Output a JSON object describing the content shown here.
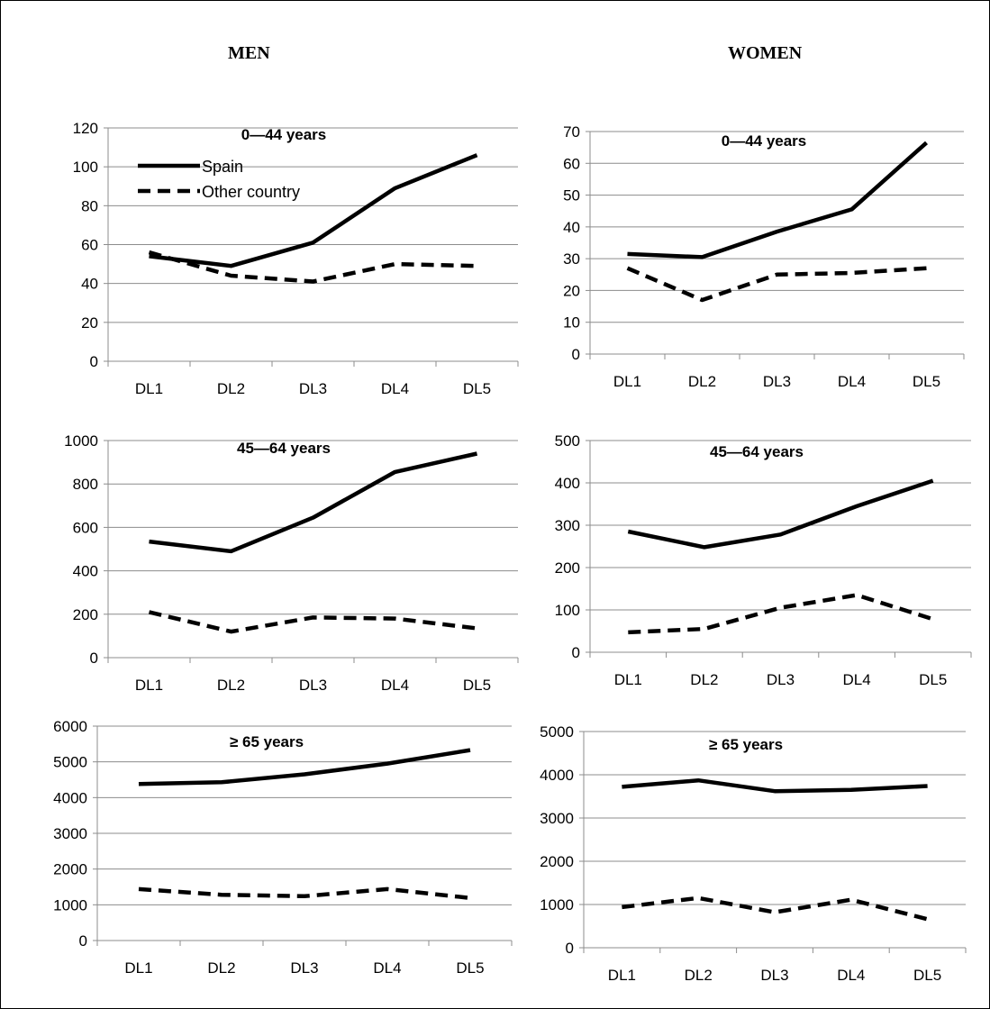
{
  "headers": {
    "men": "MEN",
    "women": "WOMEN"
  },
  "legend": {
    "spain": "Spain",
    "other": "Other country"
  },
  "chart_data": [
    {
      "type": "line",
      "group": "MEN",
      "title": "0—44 years",
      "categories": [
        "DL1",
        "DL2",
        "DL3",
        "DL4",
        "DL5"
      ],
      "ylim": [
        0,
        120
      ],
      "yticks": [
        0,
        20,
        40,
        60,
        80,
        100,
        120
      ],
      "series": [
        {
          "name": "Spain",
          "values": [
            54,
            49,
            61,
            89,
            106
          ]
        },
        {
          "name": "Other country",
          "values": [
            56,
            44,
            41,
            50,
            49
          ]
        }
      ]
    },
    {
      "type": "line",
      "group": "WOMEN",
      "title": "0—44 years",
      "categories": [
        "DL1",
        "DL2",
        "DL3",
        "DL4",
        "DL5"
      ],
      "ylim": [
        0,
        70
      ],
      "yticks": [
        0,
        10,
        20,
        30,
        40,
        50,
        60,
        70
      ],
      "series": [
        {
          "name": "Spain",
          "values": [
            31.5,
            30.5,
            38.5,
            45.5,
            66.5
          ]
        },
        {
          "name": "Other country",
          "values": [
            27,
            17,
            25,
            25.5,
            27
          ]
        }
      ]
    },
    {
      "type": "line",
      "group": "MEN",
      "title": "45—64 years",
      "categories": [
        "DL1",
        "DL2",
        "DL3",
        "DL4",
        "DL5"
      ],
      "ylim": [
        0,
        1000
      ],
      "yticks": [
        0,
        200,
        400,
        600,
        800,
        1000
      ],
      "series": [
        {
          "name": "Spain",
          "values": [
            535,
            490,
            645,
            855,
            940
          ]
        },
        {
          "name": "Other country",
          "values": [
            210,
            120,
            185,
            180,
            135
          ]
        }
      ]
    },
    {
      "type": "line",
      "group": "WOMEN",
      "title": "45—64 years",
      "categories": [
        "DL1",
        "DL2",
        "DL3",
        "DL4",
        "DL5"
      ],
      "ylim": [
        0,
        500
      ],
      "yticks": [
        0,
        100,
        200,
        300,
        400,
        500
      ],
      "series": [
        {
          "name": "Spain",
          "values": [
            285,
            248,
            278,
            345,
            405
          ]
        },
        {
          "name": "Other country",
          "values": [
            47,
            55,
            105,
            135,
            78
          ]
        }
      ]
    },
    {
      "type": "line",
      "group": "MEN",
      "title": "≥ 65 years",
      "categories": [
        "DL1",
        "DL2",
        "DL3",
        "DL4",
        "DL5"
      ],
      "ylim": [
        0,
        6000
      ],
      "yticks": [
        0,
        1000,
        2000,
        3000,
        4000,
        5000,
        6000
      ],
      "series": [
        {
          "name": "Spain",
          "values": [
            4380,
            4430,
            4650,
            4950,
            5330
          ]
        },
        {
          "name": "Other country",
          "values": [
            1440,
            1280,
            1240,
            1440,
            1190
          ]
        }
      ]
    },
    {
      "type": "line",
      "group": "WOMEN",
      "title": "≥ 65  years",
      "categories": [
        "DL1",
        "DL2",
        "DL3",
        "DL4",
        "DL5"
      ],
      "ylim": [
        0,
        5000
      ],
      "yticks": [
        0,
        1000,
        2000,
        3000,
        4000,
        5000
      ],
      "series": [
        {
          "name": "Spain",
          "values": [
            3720,
            3870,
            3620,
            3650,
            3740
          ]
        },
        {
          "name": "Other country",
          "values": [
            940,
            1150,
            820,
            1110,
            660
          ]
        }
      ]
    }
  ]
}
